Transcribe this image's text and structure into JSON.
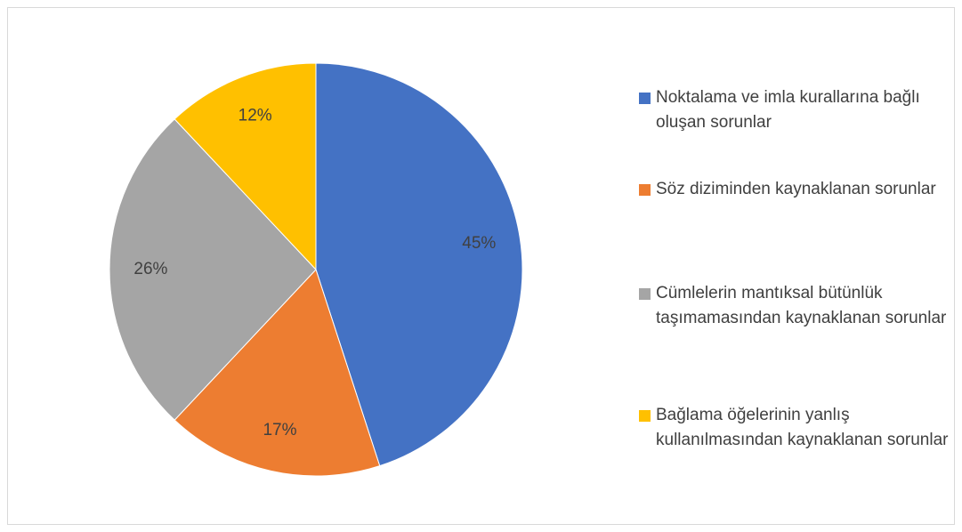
{
  "chart_data": {
    "type": "pie",
    "categories": [
      "Noktalama ve imla kurallarına bağlı oluşan sorunlar",
      "Söz diziminden kaynaklanan sorunlar",
      "Cümlelerin mantıksal bütünlük taşımamasından kaynaklanan sorunlar",
      "Bağlama öğelerinin yanlış kullanılmasından kaynaklanan sorunlar"
    ],
    "values": [
      45,
      17,
      26,
      12
    ],
    "value_labels": [
      "45%",
      "17%",
      "26%",
      "12%"
    ],
    "colors": [
      "#4472c4",
      "#ed7d31",
      "#a5a5a5",
      "#ffc000"
    ],
    "legend": "right"
  }
}
